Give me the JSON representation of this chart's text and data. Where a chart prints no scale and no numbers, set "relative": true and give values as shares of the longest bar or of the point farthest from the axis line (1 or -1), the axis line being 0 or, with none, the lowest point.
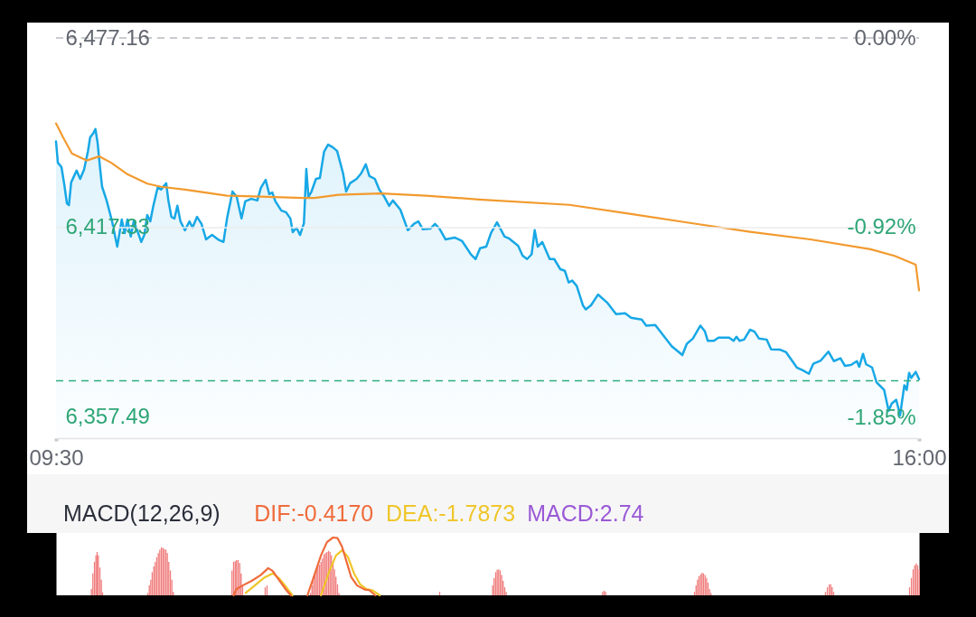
{
  "chart_data": [
    {
      "type": "line",
      "series": [
        {
          "type": "area",
          "color": "#17a8e6",
          "x": [
            9.5,
            9.514,
            9.541,
            9.563,
            9.582,
            9.597,
            9.614,
            9.655,
            9.682,
            9.711,
            9.74,
            9.757,
            9.779,
            9.797,
            9.813,
            9.831,
            9.847,
            9.881,
            9.922,
            9.961,
            9.995,
            10.017,
            10.038,
            10.063,
            10.085,
            10.119,
            10.142,
            10.165,
            10.187,
            10.21,
            10.233,
            10.267,
            10.29,
            10.33,
            10.346,
            10.369,
            10.392,
            10.414,
            10.437,
            10.471,
            10.505,
            10.528,
            10.562,
            10.596,
            10.63,
            10.675,
            10.72,
            10.761,
            10.788,
            10.829,
            10.861,
            10.897,
            10.925,
            10.97,
            11.016,
            11.043,
            11.079,
            11.106,
            11.129,
            11.152,
            11.197,
            11.231,
            11.265,
            11.283,
            11.311,
            11.338,
            11.367,
            11.385,
            11.401,
            11.424,
            11.458,
            11.487,
            11.519,
            11.549,
            11.583,
            11.617,
            11.662,
            11.685,
            11.714,
            11.764,
            11.798,
            11.833,
            11.86,
            11.901,
            11.935,
            11.969,
            12.009,
            12.037,
            12.093,
            12.15,
            12.195,
            12.229,
            12.263,
            12.32,
            12.354,
            12.388,
            12.434,
            12.502,
            12.558,
            12.626,
            12.66,
            12.694,
            12.74,
            12.776,
            12.821,
            12.878,
            12.912,
            12.98,
            13.014,
            13.048,
            13.082,
            13.105,
            13.128,
            13.162,
            13.218,
            13.252,
            13.298,
            13.332,
            13.361,
            13.388,
            13.422,
            13.468,
            13.49,
            13.529,
            13.582,
            13.65,
            13.718,
            13.786,
            13.831,
            13.911,
            13.945,
            14.013,
            14.137,
            14.217,
            14.251,
            14.296,
            14.353,
            14.387,
            14.409,
            14.455,
            14.489,
            14.569,
            14.603,
            14.625,
            14.648,
            14.682,
            14.727,
            14.761,
            14.795,
            14.852,
            14.886,
            14.954,
            14.999,
            15.079,
            15.124,
            15.17,
            15.204,
            15.26,
            15.317,
            15.358,
            15.408,
            15.442,
            15.487,
            15.532,
            15.549,
            15.578,
            15.601,
            15.646,
            15.68,
            15.737,
            15.771,
            15.794,
            15.828,
            15.857,
            15.889,
            15.907,
            15.925,
            15.941,
            15.975,
            16.0
          ],
          "values": [
            6444.5,
            6437.8,
            6436.4,
            6430.7,
            6425.0,
            6424.4,
            6431.6,
            6435.3,
            6432.7,
            6435.6,
            6441.3,
            6445.8,
            6447.0,
            6448.4,
            6444.1,
            6436.4,
            6430.2,
            6425.9,
            6419.3,
            6411.3,
            6419.9,
            6415.6,
            6419.9,
            6414.5,
            6419.3,
            6415.6,
            6412.8,
            6415.0,
            6421.3,
            6419.3,
            6424.2,
            6430.2,
            6429.3,
            6431.3,
            6425.9,
            6420.7,
            6420.2,
            6424.2,
            6419.3,
            6416.5,
            6419.3,
            6417.3,
            6420.7,
            6418.5,
            6413.6,
            6415.0,
            6413.6,
            6412.8,
            6420.2,
            6428.7,
            6427.0,
            6420.2,
            6425.6,
            6426.4,
            6425.9,
            6429.9,
            6432.4,
            6427.9,
            6428.4,
            6425.6,
            6422.7,
            6422.2,
            6420.2,
            6415.9,
            6417.3,
            6415.0,
            6418.7,
            6435.8,
            6427.0,
            6428.7,
            6432.7,
            6433.0,
            6441.3,
            6443.5,
            6442.7,
            6441.5,
            6434.4,
            6428.7,
            6431.3,
            6432.7,
            6434.4,
            6437.3,
            6433.6,
            6432.7,
            6429.3,
            6427.3,
            6424.2,
            6425.9,
            6423.0,
            6416.5,
            6418.5,
            6419.3,
            6416.8,
            6417.0,
            6418.5,
            6417.0,
            6413.6,
            6414.2,
            6413.1,
            6408.8,
            6407.4,
            6410.8,
            6411.3,
            6415.6,
            6419.0,
            6414.5,
            6413.9,
            6411.6,
            6408.5,
            6407.4,
            6408.9,
            6416.5,
            6411.3,
            6412.8,
            6407.4,
            6407.4,
            6404.2,
            6403.7,
            6400.0,
            6400.6,
            6398.9,
            6392.8,
            6391.5,
            6392.8,
            6396.2,
            6393.7,
            6390.0,
            6390.3,
            6388.9,
            6388.3,
            6386.4,
            6386.6,
            6379.9,
            6377.1,
            6380.7,
            6382.3,
            6386.4,
            6384.6,
            6381.6,
            6381.6,
            6382.6,
            6382.6,
            6381.6,
            6382.9,
            6381.6,
            6382.0,
            6385.1,
            6384.5,
            6382.3,
            6382.0,
            6378.9,
            6378.8,
            6378.0,
            6373.2,
            6372.3,
            6371.2,
            6374.4,
            6375.4,
            6378.2,
            6375.2,
            6376.1,
            6373.7,
            6374.0,
            6375.2,
            6373.4,
            6377.5,
            6374.2,
            6373.2,
            6368.5,
            6366.1,
            6359.5,
            6361.8,
            6363.0,
            6358.1,
            6367.6,
            6366.1,
            6371.5,
            6369.9,
            6371.8,
            6369.5
          ]
        },
        {
          "color": "#f29a2e",
          "x": [
            9.5,
            9.552,
            9.62,
            9.733,
            9.825,
            9.915,
            10.04,
            10.187,
            10.29,
            10.471,
            10.788,
            11.038,
            11.356,
            11.447,
            11.628,
            11.946,
            12.286,
            12.685,
            13.366,
            13.82,
            14.273,
            14.727,
            15.181,
            15.634,
            15.816,
            15.975,
            16.0
          ],
          "values": [
            6450.2,
            6445.9,
            6440.7,
            6438.5,
            6439.8,
            6437.8,
            6434.1,
            6431.2,
            6430.2,
            6429.3,
            6427.4,
            6427.1,
            6426.7,
            6426.7,
            6427.7,
            6428.1,
            6427.4,
            6426.2,
            6424.5,
            6421.7,
            6418.8,
            6416.0,
            6413.6,
            6410.5,
            6408.4,
            6405.6,
            6397.5
          ]
        }
      ],
      "xlim": [
        9.5,
        16
      ],
      "xticks": [
        {
          "value": 9.5,
          "label": "09:30"
        },
        {
          "value": 16,
          "label": "16:00"
        }
      ],
      "ylim": [
        6350.9,
        6477.16
      ],
      "yticks": [
        {
          "value": 6357.49,
          "label": "6,357.49"
        },
        {
          "value": 6417.33,
          "label": "6,417.33"
        },
        {
          "value": 6477.16,
          "label": "6,477.16"
        }
      ],
      "y2lim": [
        -1.95,
        0
      ],
      "y2ticks": [
        {
          "value": -1.85,
          "label": "-1.85%"
        },
        {
          "value": -0.92,
          "label": "-0.92%"
        },
        {
          "value": 0,
          "label": "0.00%"
        }
      ],
      "ref_lines": [
        {
          "axis": "y",
          "value": 6477.16,
          "color": "#b8b9be",
          "line_style": "dashed"
        },
        {
          "axis": "y",
          "value": 6417.33,
          "color": "#ececec",
          "line_style": "solid"
        },
        {
          "axis": "y",
          "value": 6369.0,
          "color": "#2fae7e",
          "line_style": "dashed"
        }
      ]
    },
    {
      "type": "bar",
      "title": "MACD(12,26,9)",
      "relative": true,
      "xlim": [
        9.5,
        16
      ],
      "tick_labels": false,
      "legend": "top left",
      "annotations": [
        "MACD:2.74"
      ],
      "series": [
        {
          "color": "#f07c7c",
          "x": [
            9.763,
            9.774,
            9.786,
            9.797,
            9.806,
            9.815,
            9.827,
            9.838,
            9.847,
            10.187,
            10.199,
            10.21,
            10.221,
            10.233,
            10.244,
            10.255,
            10.267,
            10.278,
            10.29,
            10.301,
            10.312,
            10.324,
            10.335,
            10.346,
            10.358,
            10.369,
            10.38,
            10.822,
            10.834,
            10.846,
            10.856,
            10.868,
            10.88,
            10.891,
            10.902,
            11.072,
            11.086,
            11.413,
            11.424,
            11.435,
            11.447,
            11.458,
            11.469,
            11.481,
            11.492,
            11.503,
            11.515,
            11.526,
            11.537,
            11.549,
            11.56,
            11.571,
            11.583,
            11.594,
            11.605,
            11.617,
            11.628,
            12.386,
            12.785,
            12.796,
            12.808,
            12.819,
            12.83,
            12.842,
            12.853,
            12.864,
            12.876,
            12.887,
            13.613,
            13.625,
            13.636,
            14.305,
            14.317,
            14.328,
            14.339,
            14.351,
            14.362,
            14.373,
            14.385,
            14.396,
            14.407,
            14.419,
            14.43,
            15.292,
            15.306,
            15.32,
            15.331,
            15.342,
            15.353,
            15.925,
            15.939,
            15.952,
            15.964,
            15.975,
            15.986,
            15.998
          ],
          "values": [
            0.11,
            0.38,
            0.58,
            0.69,
            0.75,
            0.69,
            0.48,
            0.27,
            0.05,
            0.04,
            0.17,
            0.27,
            0.4,
            0.5,
            0.58,
            0.66,
            0.73,
            0.79,
            0.83,
            0.82,
            0.8,
            0.79,
            0.73,
            0.58,
            0.43,
            0.27,
            0.06,
            0.43,
            0.58,
            0.59,
            0.61,
            0.61,
            0.56,
            0.38,
            0.17,
            0.14,
            0.17,
            0.04,
            0.17,
            0.3,
            0.4,
            0.45,
            0.5,
            0.53,
            0.58,
            0.64,
            0.71,
            0.73,
            0.75,
            0.77,
            0.75,
            0.69,
            0.58,
            0.45,
            0.32,
            0.19,
            0.04,
            0.06,
            0.17,
            0.3,
            0.4,
            0.44,
            0.45,
            0.43,
            0.35,
            0.25,
            0.14,
            0.06,
            0.06,
            0.08,
            0.06,
            0.06,
            0.17,
            0.27,
            0.33,
            0.36,
            0.39,
            0.38,
            0.35,
            0.3,
            0.22,
            0.11,
            0.04,
            0.06,
            0.14,
            0.19,
            0.19,
            0.14,
            0.06,
            0.14,
            0.3,
            0.45,
            0.52,
            0.55,
            0.52,
            0.45
          ]
        },
        {
          "type": "line",
          "name": "DIF:-0.4170",
          "color": "#ef6b3b",
          "x": [
            10.834,
            10.856,
            10.902,
            10.97,
            11.038,
            11.095,
            11.129,
            11.174,
            11.231,
            11.265,
            11.33,
            11.39,
            11.447,
            11.492,
            11.537,
            11.583,
            11.617,
            11.651,
            11.685,
            11.719,
            11.764,
            11.821,
            11.855,
            11.901
          ],
          "values": [
            0.0,
            0.11,
            0.17,
            0.25,
            0.35,
            0.47,
            0.42,
            0.27,
            0.09,
            0.0,
            null,
            0.0,
            0.38,
            0.69,
            0.92,
            1.0,
            0.99,
            0.84,
            0.58,
            0.32,
            0.17,
            0.1,
            0.09,
            0.0
          ]
        },
        {
          "type": "line",
          "name": "DEA:-1.7873",
          "color": "#efc62a",
          "x": [
            10.925,
            10.993,
            11.061,
            11.129,
            11.174,
            11.231,
            11.277,
            11.38,
            11.492,
            11.549,
            11.605,
            11.651,
            11.696,
            11.741,
            11.787,
            11.833,
            11.877,
            11.935
          ],
          "values": [
            0.04,
            0.17,
            0.3,
            0.38,
            0.3,
            0.14,
            0.0,
            null,
            0.0,
            0.38,
            0.69,
            0.78,
            0.66,
            0.38,
            0.19,
            0.11,
            0.09,
            0.0
          ]
        }
      ]
    }
  ]
}
